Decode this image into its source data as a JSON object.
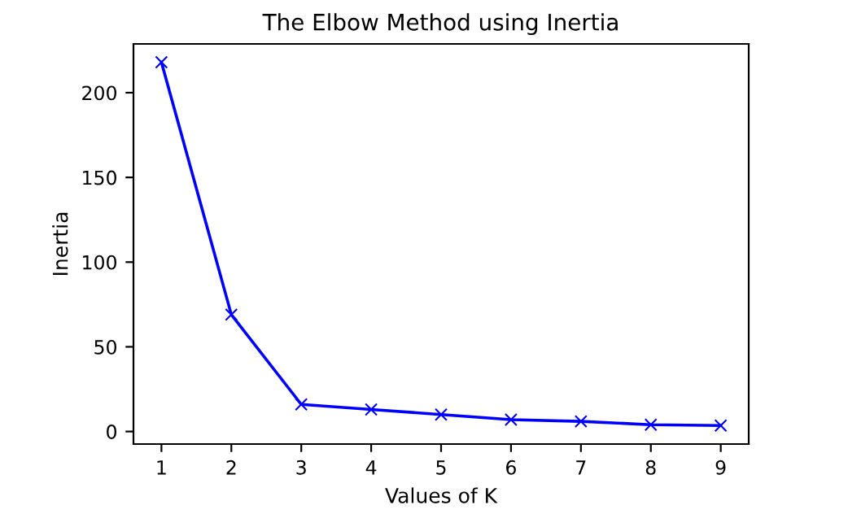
{
  "chart_data": {
    "type": "line",
    "title": "The Elbow Method using Inertia",
    "xlabel": "Values of K",
    "ylabel": "Inertia",
    "x": [
      1,
      2,
      3,
      4,
      5,
      6,
      7,
      8,
      9
    ],
    "series": [
      {
        "color": "#0000ff",
        "values": [
          218,
          69,
          16,
          13,
          10,
          7,
          6,
          4,
          3.5
        ]
      }
    ],
    "xlim": [
      0.6,
      9.4
    ],
    "xticks": [
      1,
      2,
      3,
      4,
      5,
      6,
      7,
      8,
      9
    ],
    "ylim": [
      -7.4,
      228.8
    ],
    "yticks": [
      0,
      50,
      100,
      150,
      200
    ],
    "marker": "cross",
    "line_style": "solid",
    "grid": false
  }
}
